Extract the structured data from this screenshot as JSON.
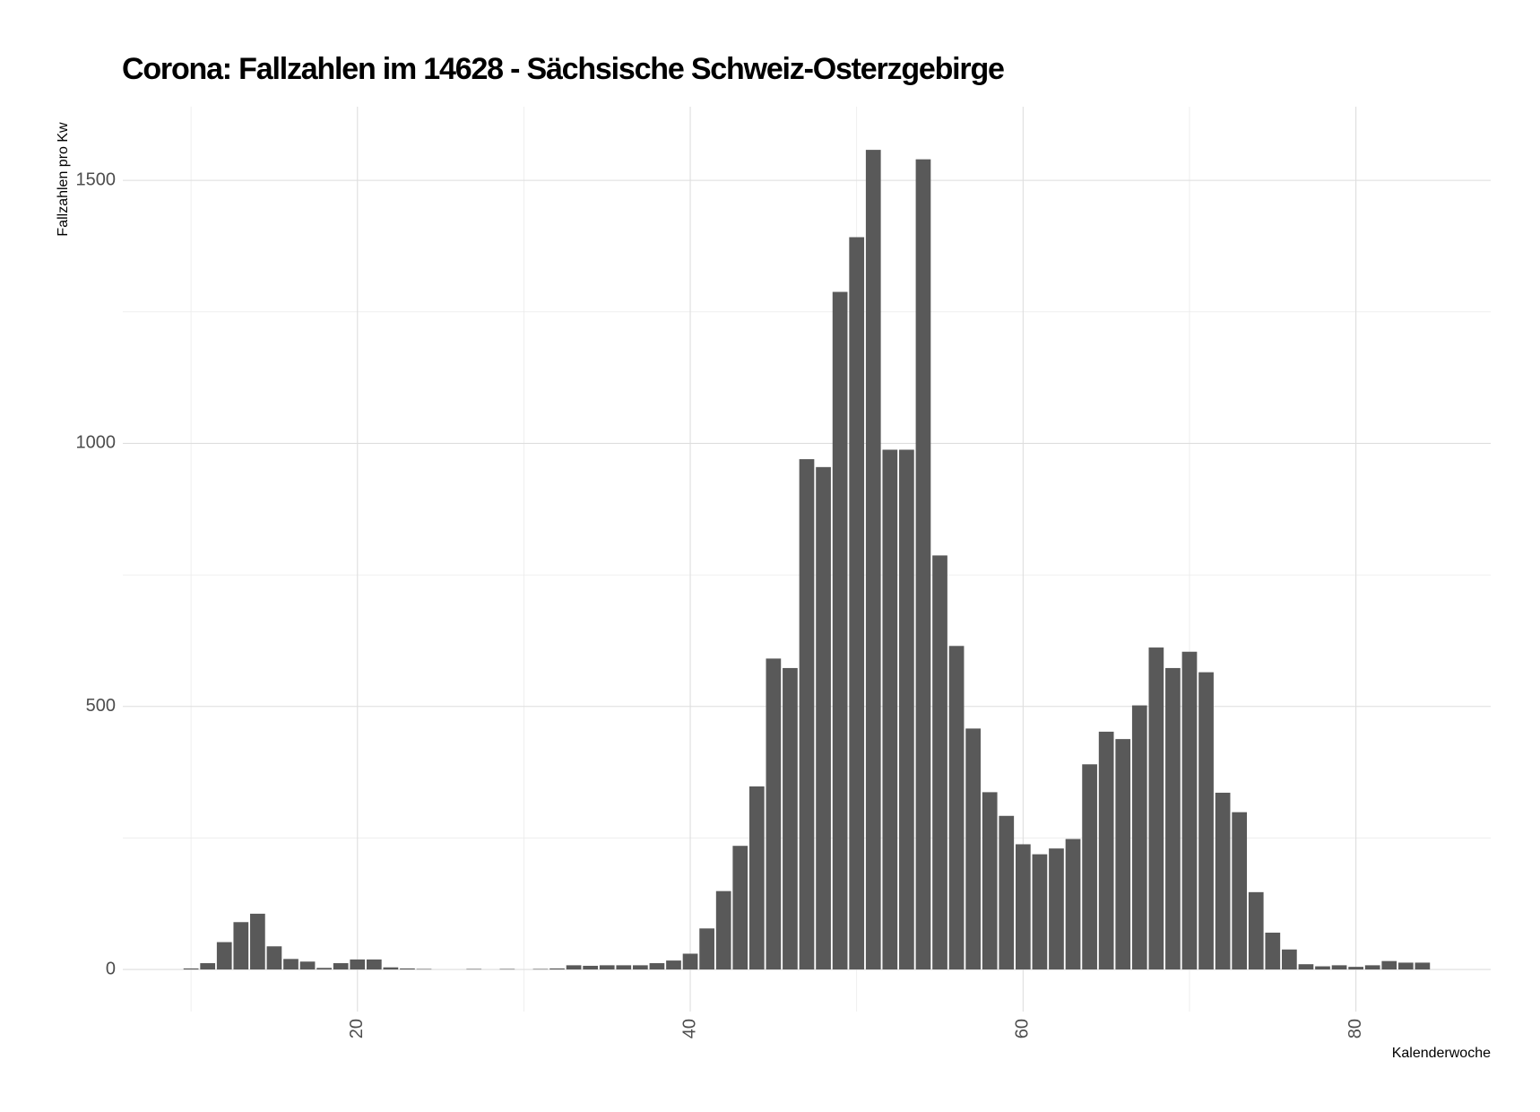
{
  "chart_data": {
    "type": "bar",
    "title": "Corona: Fallzahlen im 14628 - Sächsische Schweiz-Osterzgebirge",
    "x_label": "Kalenderwoche",
    "y_label": "Fallzahlen pro Kw",
    "x": [
      10,
      11,
      12,
      13,
      14,
      15,
      16,
      17,
      18,
      19,
      20,
      21,
      22,
      23,
      24,
      25,
      26,
      27,
      28,
      29,
      30,
      31,
      32,
      33,
      34,
      35,
      36,
      37,
      38,
      39,
      40,
      41,
      42,
      43,
      44,
      45,
      46,
      47,
      48,
      49,
      50,
      51,
      52,
      53,
      54,
      55,
      56,
      57,
      58,
      59,
      60,
      61,
      62,
      63,
      64,
      65,
      66,
      67,
      68,
      69,
      70,
      71,
      72,
      73,
      74,
      75,
      76,
      77,
      78,
      79,
      80,
      81,
      82,
      83,
      84
    ],
    "values": [
      2,
      12,
      52,
      90,
      106,
      44,
      20,
      15,
      3,
      12,
      19,
      19,
      4,
      2,
      1,
      0,
      0,
      1,
      0,
      1,
      0,
      1,
      2,
      8,
      7,
      8,
      8,
      8,
      12,
      17,
      30,
      78,
      149,
      235,
      348,
      591,
      573,
      970,
      955,
      1288,
      1392,
      1558,
      988,
      988,
      1540,
      787,
      615,
      458,
      337,
      292,
      238,
      219,
      230,
      248,
      390,
      452,
      438,
      502,
      612,
      573,
      604,
      565,
      336,
      299,
      147,
      70,
      38,
      10,
      6,
      8,
      5,
      8,
      16,
      13,
      13
    ],
    "color": "#595959",
    "xlim": [
      5.9,
      88.1
    ],
    "ylim": [
      -80,
      1640
    ],
    "xticks": [
      20,
      40,
      60,
      80
    ],
    "yticks": [
      0,
      500,
      1000,
      1500
    ],
    "minor_xticks": [
      10,
      30,
      50,
      70
    ],
    "minor_yticks": [
      250,
      750,
      1250
    ],
    "grid": true
  }
}
